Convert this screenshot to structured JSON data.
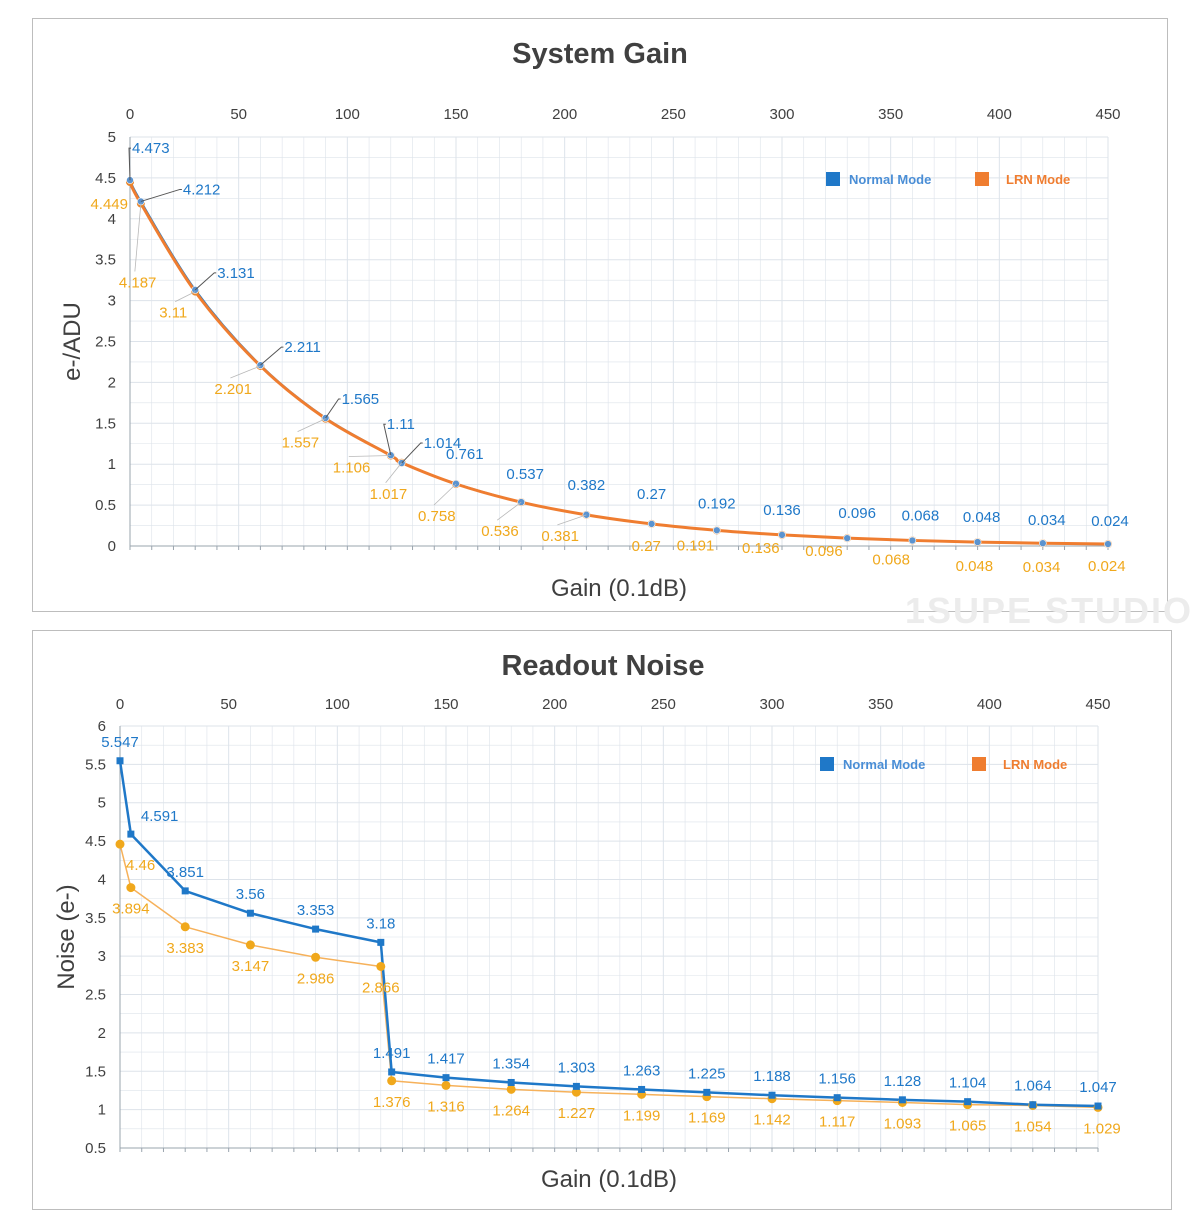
{
  "watermark": "1SUPE STUDIO",
  "colors": {
    "normal": "#1f78c8",
    "lrn": "#ef7d30",
    "lrn_label": "#f0a81c",
    "grid": "#dde3ea",
    "text": "#404040"
  },
  "chart_data": [
    {
      "type": "line",
      "title": "System Gain",
      "xlabel": "Gain (0.1dB)",
      "ylabel": "e-/ADU",
      "xlim": [
        0,
        450
      ],
      "ylim": [
        0,
        5
      ],
      "xticks": [
        "0",
        "50",
        "100",
        "150",
        "200",
        "250",
        "300",
        "350",
        "400",
        "450"
      ],
      "yticks": [
        "0",
        "0.5",
        "1",
        "1.5",
        "2",
        "2.5",
        "3",
        "3.5",
        "4",
        "4.5",
        "5"
      ],
      "grid": true,
      "legend": "top-right",
      "x": [
        0,
        5,
        30,
        60,
        90,
        120,
        125,
        150,
        180,
        210,
        240,
        270,
        300,
        330,
        360,
        390,
        420,
        450
      ],
      "series": [
        {
          "name": "Normal Mode",
          "values": [
            4.473,
            4.212,
            3.131,
            2.211,
            1.565,
            1.11,
            1.014,
            0.761,
            0.537,
            0.382,
            0.27,
            0.192,
            0.136,
            0.096,
            0.068,
            0.048,
            0.034,
            0.024
          ],
          "labels": [
            "4.473",
            "4.212",
            "3.131",
            "2.211",
            "1.565",
            "1.11",
            "1.014",
            "0.761",
            "0.537",
            "0.382",
            "0.27",
            "0.192",
            "0.136",
            "0.096",
            "0.068",
            "0.048",
            "0.034",
            "0.024"
          ]
        },
        {
          "name": "LRN Mode",
          "values": [
            4.449,
            4.187,
            3.11,
            2.201,
            1.557,
            1.106,
            1.017,
            0.758,
            0.536,
            0.381,
            0.27,
            0.191,
            0.136,
            0.096,
            0.068,
            0.048,
            0.034,
            0.024
          ],
          "labels": [
            "4.449",
            "4.187",
            "3.11",
            "2.201",
            "1.557",
            "1.106",
            "1.017",
            "0.758",
            "0.536",
            "0.381",
            "0.27",
            "0.191",
            "0.136",
            "0.096",
            "0.068",
            "0.048",
            "0.034",
            "0.024"
          ]
        }
      ]
    },
    {
      "type": "line",
      "title": "Readout Noise",
      "xlabel": "Gain (0.1dB)",
      "ylabel": "Noise (e-)",
      "xlim": [
        0,
        450
      ],
      "ylim": [
        0.5,
        6
      ],
      "xticks": [
        "0",
        "50",
        "100",
        "150",
        "200",
        "250",
        "300",
        "350",
        "400",
        "450"
      ],
      "yticks": [
        "0.5",
        "1",
        "1.5",
        "2",
        "2.5",
        "3",
        "3.5",
        "4",
        "4.5",
        "5",
        "5.5",
        "6"
      ],
      "grid": true,
      "legend": "top-right",
      "series": [
        {
          "name": "Normal Mode",
          "x": [
            0,
            5,
            30,
            60,
            90,
            120,
            125,
            150,
            180,
            210,
            240,
            270,
            300,
            330,
            360,
            390,
            420,
            450
          ],
          "values": [
            5.547,
            4.591,
            3.851,
            3.56,
            3.353,
            3.18,
            1.491,
            1.417,
            1.354,
            1.303,
            1.263,
            1.225,
            1.188,
            1.156,
            1.128,
            1.104,
            1.064,
            1.047
          ],
          "labels": [
            "5.547",
            "4.591",
            "3.851",
            "3.56",
            "3.353",
            "3.18",
            "1.491",
            "1.417",
            "1.354",
            "1.303",
            "1.263",
            "1.225",
            "1.188",
            "1.156",
            "1.128",
            "1.104",
            "1.064",
            "1.047"
          ]
        },
        {
          "name": "LRN Mode",
          "x": [
            0,
            5,
            30,
            60,
            90,
            120,
            125,
            150,
            180,
            210,
            240,
            270,
            300,
            330,
            360,
            390,
            420,
            450
          ],
          "values": [
            4.46,
            3.894,
            3.383,
            3.147,
            2.986,
            2.866,
            1.376,
            1.316,
            1.264,
            1.227,
            1.199,
            1.169,
            1.142,
            1.117,
            1.093,
            1.065,
            1.054,
            1.029
          ],
          "labels": [
            "4.46",
            "3.894",
            "3.383",
            "3.147",
            "2.986",
            "2.866",
            "1.376",
            "1.316",
            "1.264",
            "1.227",
            "1.199",
            "1.169",
            "1.142",
            "1.117",
            "1.093",
            "1.065",
            "1.054",
            "1.029"
          ]
        }
      ]
    }
  ]
}
